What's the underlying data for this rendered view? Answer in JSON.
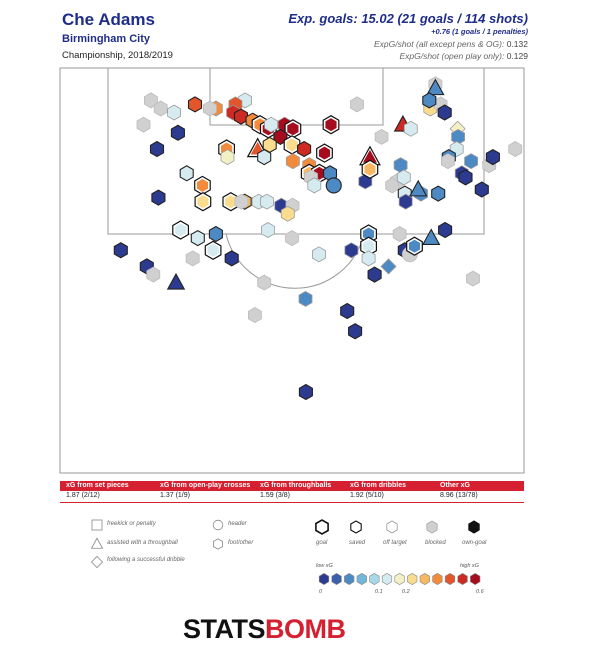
{
  "header": {
    "player": "Che Adams",
    "team": "Birmingham City",
    "season": "Championship, 2018/2019",
    "xg_headline": "Exp. goals: 15.02 (21 goals / 114 shots)",
    "xg_pens": "+0.76 (1 goals / 1 penalties)",
    "xg_per_shot_all_label": "ExpG/shot (all except pens & OG):",
    "xg_per_shot_all_value": "0.132",
    "xg_per_shot_open_label": "ExpG/shot (open play only):",
    "xg_per_shot_open_value": "0.129"
  },
  "xg_table": {
    "headers": [
      "xG from set pieces",
      "xG from open-play crosses",
      "xG from throughballs",
      "xG from dribbles",
      "Other xG"
    ],
    "values": [
      "1.87 (2/12)",
      "1.37 (1/9)",
      "1.59 (3/8)",
      "1.92 (5/10)",
      "8.96 (13/78)"
    ]
  },
  "legend": {
    "shape_labels": [
      "freekick or penalty",
      "assisted with a throughball",
      "following a successful dribble",
      "header",
      "foot/other"
    ],
    "outcome_labels": [
      "goal",
      "saved",
      "off target",
      "blocked",
      "own-goal"
    ],
    "scale_low": "low xG",
    "scale_high": "high xG",
    "scale_ticks": [
      "0",
      "0.1",
      "0.2",
      "0.6"
    ],
    "scale_colors": [
      "#2c3b8f",
      "#3a5fad",
      "#4d8ac4",
      "#72b6dc",
      "#a6d8ea",
      "#d6ebf0",
      "#f2f0c4",
      "#f9dc8d",
      "#f8b861",
      "#f28c3c",
      "#e3552b",
      "#cc2a22",
      "#a50d1e"
    ]
  },
  "brand": {
    "part1": "STATS",
    "part2": "BOMB"
  },
  "chart_data": {
    "type": "scatter",
    "title": "Che Adams",
    "subtitle": "Birmingham City",
    "encoding": "x = pitch width position, y = distance from goal line; color = xG; outline = outcome",
    "shots": [
      {
        "x": 19.6,
        "y": 92,
        "xg": 0.0,
        "outcome": "blocked",
        "shape": "hex"
      },
      {
        "x": 21.7,
        "y": 90,
        "xg": 0.0,
        "outcome": "blocked",
        "shape": "hex"
      },
      {
        "x": 24.6,
        "y": 89,
        "xg": 0.1,
        "outcome": "off target",
        "shape": "hex"
      },
      {
        "x": 39.9,
        "y": 92,
        "xg": 0.1,
        "outcome": "off target",
        "shape": "hex"
      },
      {
        "x": 37.8,
        "y": 91,
        "xg": 0.4,
        "outcome": "off target",
        "shape": "hex"
      },
      {
        "x": 33.6,
        "y": 90,
        "xg": 0.3,
        "outcome": "off target",
        "shape": "hex"
      },
      {
        "x": 32.3,
        "y": 90,
        "xg": 0.0,
        "outcome": "blocked",
        "shape": "hex"
      },
      {
        "x": 29.1,
        "y": 91,
        "xg": 0.4,
        "outcome": "saved",
        "shape": "hex"
      },
      {
        "x": 37.3,
        "y": 89,
        "xg": 0.5,
        "outcome": "off target",
        "shape": "hex"
      },
      {
        "x": 18.0,
        "y": 86,
        "xg": 0.0,
        "outcome": "blocked",
        "shape": "hex"
      },
      {
        "x": 39.0,
        "y": 88,
        "xg": 0.5,
        "outcome": "saved",
        "shape": "hex"
      },
      {
        "x": 41.5,
        "y": 87,
        "xg": 0.3,
        "outcome": "saved",
        "shape": "hex"
      },
      {
        "x": 43.1,
        "y": 86,
        "xg": 0.3,
        "outcome": "goal",
        "shape": "hex"
      },
      {
        "x": 44.9,
        "y": 85,
        "xg": 0.6,
        "outcome": "goal",
        "shape": "hex"
      },
      {
        "x": 45.5,
        "y": 86,
        "xg": 0.1,
        "outcome": "off target",
        "shape": "hex"
      },
      {
        "x": 48.4,
        "y": 86,
        "xg": 0.6,
        "outcome": "off target",
        "shape": "hex"
      },
      {
        "x": 50.2,
        "y": 85,
        "xg": 0.6,
        "outcome": "goal",
        "shape": "hex"
      },
      {
        "x": 47.5,
        "y": 83,
        "xg": 0.8,
        "outcome": "saved",
        "shape": "hex"
      },
      {
        "x": 50.0,
        "y": 81,
        "xg": 0.2,
        "outcome": "goal",
        "shape": "hex"
      },
      {
        "x": 52.6,
        "y": 80,
        "xg": 0.5,
        "outcome": "saved",
        "shape": "hex"
      },
      {
        "x": 57.0,
        "y": 79,
        "xg": 0.6,
        "outcome": "goal",
        "shape": "hex"
      },
      {
        "x": 58.4,
        "y": 86,
        "xg": 0.6,
        "outcome": "goal",
        "shape": "hex"
      },
      {
        "x": 64.0,
        "y": 91,
        "xg": 0.0,
        "outcome": "blocked",
        "shape": "hex"
      },
      {
        "x": 73.9,
        "y": 86,
        "xg": 0.5,
        "outcome": "saved",
        "shape": "tri"
      },
      {
        "x": 69.3,
        "y": 83,
        "xg": 0.0,
        "outcome": "blocked",
        "shape": "hex"
      },
      {
        "x": 75.6,
        "y": 85,
        "xg": 0.1,
        "outcome": "off target",
        "shape": "hex"
      },
      {
        "x": 79.8,
        "y": 90,
        "xg": 0.2,
        "outcome": "off target",
        "shape": "hex"
      },
      {
        "x": 80.9,
        "y": 96,
        "xg": 0.0,
        "outcome": "blocked",
        "shape": "hex"
      },
      {
        "x": 80.9,
        "y": 95,
        "xg": 0.05,
        "outcome": "saved",
        "shape": "tri"
      },
      {
        "x": 82.0,
        "y": 91,
        "xg": 0.1,
        "outcome": "blocked",
        "shape": "hex"
      },
      {
        "x": 79.6,
        "y": 92,
        "xg": 0.05,
        "outcome": "saved",
        "shape": "hex"
      },
      {
        "x": 82.9,
        "y": 89,
        "xg": 0.0,
        "outcome": "saved",
        "shape": "hex"
      },
      {
        "x": 85.7,
        "y": 85,
        "xg": 0.15,
        "outcome": "off target",
        "shape": "diamond"
      },
      {
        "x": 85.8,
        "y": 83,
        "xg": 0.05,
        "outcome": "off target",
        "shape": "hex"
      },
      {
        "x": 85.5,
        "y": 80,
        "xg": 0.1,
        "outcome": "off target",
        "shape": "hex"
      },
      {
        "x": 83.8,
        "y": 78,
        "xg": 0.05,
        "outcome": "saved",
        "shape": "hex"
      },
      {
        "x": 83.6,
        "y": 77,
        "xg": 0.1,
        "outcome": "blocked",
        "shape": "hex"
      },
      {
        "x": 25.4,
        "y": 84,
        "xg": 0.0,
        "outcome": "saved",
        "shape": "hex"
      },
      {
        "x": 35.9,
        "y": 80,
        "xg": 0.3,
        "outcome": "goal",
        "shape": "hex"
      },
      {
        "x": 36.1,
        "y": 78,
        "xg": 0.15,
        "outcome": "off target",
        "shape": "hex"
      },
      {
        "x": 42.6,
        "y": 80,
        "xg": 0.4,
        "outcome": "goal",
        "shape": "tri"
      },
      {
        "x": 44.0,
        "y": 78,
        "xg": 0.1,
        "outcome": "saved",
        "shape": "hex"
      },
      {
        "x": 50.2,
        "y": 77,
        "xg": 0.3,
        "outcome": "off target",
        "shape": "hex"
      },
      {
        "x": 53.7,
        "y": 76,
        "xg": 0.3,
        "outcome": "off target",
        "shape": "hex"
      },
      {
        "x": 53.7,
        "y": 74,
        "xg": 0.25,
        "outcome": "goal",
        "shape": "hex"
      },
      {
        "x": 55.9,
        "y": 74,
        "xg": 0.7,
        "outcome": "goal",
        "shape": "hex"
      },
      {
        "x": 54.1,
        "y": 73,
        "xg": 0.0,
        "outcome": "blocked",
        "shape": "hex"
      },
      {
        "x": 54.8,
        "y": 71,
        "xg": 0.1,
        "outcome": "off target",
        "shape": "hex"
      },
      {
        "x": 58.2,
        "y": 74,
        "xg": 0.05,
        "outcome": "saved",
        "shape": "hex"
      },
      {
        "x": 59.0,
        "y": 71,
        "xg": 0.05,
        "outcome": "saved",
        "shape": "circle"
      },
      {
        "x": 66.8,
        "y": 78,
        "xg": 0.7,
        "outcome": "goal",
        "shape": "tri"
      },
      {
        "x": 65.8,
        "y": 72,
        "xg": 0.0,
        "outcome": "off target",
        "shape": "hex"
      },
      {
        "x": 66.8,
        "y": 75,
        "xg": 0.25,
        "outcome": "goal",
        "shape": "hex"
      },
      {
        "x": 72.6,
        "y": 72,
        "xg": 0.0,
        "outcome": "blocked",
        "shape": "hex"
      },
      {
        "x": 71.6,
        "y": 71,
        "xg": 0.0,
        "outcome": "blocked",
        "shape": "hex"
      },
      {
        "x": 73.4,
        "y": 76,
        "xg": 0.05,
        "outcome": "off target",
        "shape": "hex"
      },
      {
        "x": 74.1,
        "y": 73,
        "xg": 0.1,
        "outcome": "off target",
        "shape": "hex"
      },
      {
        "x": 74.3,
        "y": 69,
        "xg": 0.1,
        "outcome": "saved",
        "shape": "hex"
      },
      {
        "x": 74.5,
        "y": 67,
        "xg": 0.0,
        "outcome": "off target",
        "shape": "hex"
      },
      {
        "x": 77.8,
        "y": 69,
        "xg": 0.05,
        "outcome": "off target",
        "shape": "hex"
      },
      {
        "x": 77.2,
        "y": 70,
        "xg": 0.05,
        "outcome": "saved",
        "shape": "tri"
      },
      {
        "x": 81.5,
        "y": 69,
        "xg": 0.05,
        "outcome": "saved",
        "shape": "hex"
      },
      {
        "x": 86.6,
        "y": 74,
        "xg": 0.0,
        "outcome": "off target",
        "shape": "hex"
      },
      {
        "x": 88.6,
        "y": 77,
        "xg": 0.05,
        "outcome": "off target",
        "shape": "hex"
      },
      {
        "x": 87.4,
        "y": 73,
        "xg": 0.0,
        "outcome": "saved",
        "shape": "hex"
      },
      {
        "x": 92.5,
        "y": 76,
        "xg": 0.0,
        "outcome": "blocked",
        "shape": "hex"
      },
      {
        "x": 90.9,
        "y": 70,
        "xg": 0.0,
        "outcome": "saved",
        "shape": "hex"
      },
      {
        "x": 21.2,
        "y": 68,
        "xg": 0.0,
        "outcome": "saved",
        "shape": "hex"
      },
      {
        "x": 27.3,
        "y": 74,
        "xg": 0.1,
        "outcome": "saved",
        "shape": "hex"
      },
      {
        "x": 30.7,
        "y": 71,
        "xg": 0.3,
        "outcome": "goal",
        "shape": "hex"
      },
      {
        "x": 30.8,
        "y": 67,
        "xg": 0.2,
        "outcome": "goal",
        "shape": "hex"
      },
      {
        "x": 36.8,
        "y": 67,
        "xg": 0.2,
        "outcome": "goal",
        "shape": "hex"
      },
      {
        "x": 39.8,
        "y": 67,
        "xg": 0.25,
        "outcome": "saved",
        "shape": "hex"
      },
      {
        "x": 39.1,
        "y": 67,
        "xg": 0.0,
        "outcome": "blocked",
        "shape": "hex"
      },
      {
        "x": 42.8,
        "y": 67,
        "xg": 0.1,
        "outcome": "off target",
        "shape": "hex"
      },
      {
        "x": 44.6,
        "y": 67,
        "xg": 0.1,
        "outcome": "off target",
        "shape": "hex"
      },
      {
        "x": 47.7,
        "y": 66,
        "xg": 0.0,
        "outcome": "off target",
        "shape": "hex"
      },
      {
        "x": 50.1,
        "y": 66,
        "xg": 0.0,
        "outcome": "blocked",
        "shape": "hex"
      },
      {
        "x": 49.1,
        "y": 64,
        "xg": 0.2,
        "outcome": "off target",
        "shape": "hex"
      },
      {
        "x": 50.0,
        "y": 58,
        "xg": 0.0,
        "outcome": "blocked",
        "shape": "hex"
      },
      {
        "x": 44.8,
        "y": 60,
        "xg": 0.1,
        "outcome": "off target",
        "shape": "hex"
      },
      {
        "x": 66.5,
        "y": 59,
        "xg": 0.05,
        "outcome": "goal",
        "shape": "hex"
      },
      {
        "x": 66.5,
        "y": 56,
        "xg": 0.1,
        "outcome": "goal",
        "shape": "hex"
      },
      {
        "x": 66.5,
        "y": 53,
        "xg": 0.1,
        "outcome": "off target",
        "shape": "hex"
      },
      {
        "x": 80.0,
        "y": 58,
        "xg": 0.05,
        "outcome": "saved",
        "shape": "tri"
      },
      {
        "x": 83.0,
        "y": 60,
        "xg": 0.0,
        "outcome": "saved",
        "shape": "hex"
      },
      {
        "x": 73.2,
        "y": 59,
        "xg": 0.0,
        "outcome": "blocked",
        "shape": "hex"
      },
      {
        "x": 74.3,
        "y": 55,
        "xg": 0.0,
        "outcome": "saved",
        "shape": "hex"
      },
      {
        "x": 75.4,
        "y": 54,
        "xg": 0.0,
        "outcome": "blocked",
        "shape": "circle"
      },
      {
        "x": 76.4,
        "y": 56,
        "xg": 0.05,
        "outcome": "goal",
        "shape": "hex"
      },
      {
        "x": 70.8,
        "y": 51,
        "xg": 0.05,
        "outcome": "off target",
        "shape": "diamond"
      },
      {
        "x": 67.8,
        "y": 49,
        "xg": 0.0,
        "outcome": "saved",
        "shape": "hex"
      },
      {
        "x": 55.8,
        "y": 54,
        "xg": 0.1,
        "outcome": "off target",
        "shape": "hex"
      },
      {
        "x": 62.8,
        "y": 55,
        "xg": 0.0,
        "outcome": "off target",
        "shape": "hex"
      },
      {
        "x": 26.0,
        "y": 60,
        "xg": 0.1,
        "outcome": "goal",
        "shape": "hex"
      },
      {
        "x": 29.7,
        "y": 58,
        "xg": 0.1,
        "outcome": "saved",
        "shape": "hex"
      },
      {
        "x": 33.6,
        "y": 59,
        "xg": 0.05,
        "outcome": "saved",
        "shape": "hex"
      },
      {
        "x": 33.0,
        "y": 55,
        "xg": 0.1,
        "outcome": "goal",
        "shape": "hex"
      },
      {
        "x": 28.6,
        "y": 53,
        "xg": 0.0,
        "outcome": "blocked",
        "shape": "hex"
      },
      {
        "x": 13.1,
        "y": 55,
        "xg": 0.0,
        "outcome": "saved",
        "shape": "hex"
      },
      {
        "x": 18.7,
        "y": 51,
        "xg": 0.0,
        "outcome": "saved",
        "shape": "hex"
      },
      {
        "x": 20.1,
        "y": 49,
        "xg": 0.0,
        "outcome": "blocked",
        "shape": "hex"
      },
      {
        "x": 25.0,
        "y": 47,
        "xg": 0.0,
        "outcome": "saved",
        "shape": "tri"
      },
      {
        "x": 37.0,
        "y": 53,
        "xg": 0.0,
        "outcome": "saved",
        "shape": "hex"
      },
      {
        "x": 44.0,
        "y": 47,
        "xg": 0.0,
        "outcome": "blocked",
        "shape": "hex"
      },
      {
        "x": 52.9,
        "y": 43,
        "xg": 0.05,
        "outcome": "off target",
        "shape": "hex"
      },
      {
        "x": 42.0,
        "y": 39,
        "xg": 0.0,
        "outcome": "blocked",
        "shape": "hex"
      },
      {
        "x": 61.9,
        "y": 40,
        "xg": 0.0,
        "outcome": "saved",
        "shape": "hex"
      },
      {
        "x": 63.6,
        "y": 35,
        "xg": 0.0,
        "outcome": "saved",
        "shape": "hex"
      },
      {
        "x": 89.0,
        "y": 48,
        "xg": 0.0,
        "outcome": "blocked",
        "shape": "hex"
      },
      {
        "x": 98.1,
        "y": 80,
        "xg": 0.0,
        "outcome": "blocked",
        "shape": "hex"
      },
      {
        "x": 93.3,
        "y": 78,
        "xg": 0.0,
        "outcome": "saved",
        "shape": "hex"
      },
      {
        "x": 53.0,
        "y": 20,
        "xg": 0.0,
        "outcome": "saved",
        "shape": "hex"
      },
      {
        "x": 45.2,
        "y": 81,
        "xg": 0.2,
        "outcome": "saved",
        "shape": "hex"
      },
      {
        "x": 20.9,
        "y": 80,
        "xg": 0.0,
        "outcome": "saved",
        "shape": "hex"
      }
    ]
  }
}
